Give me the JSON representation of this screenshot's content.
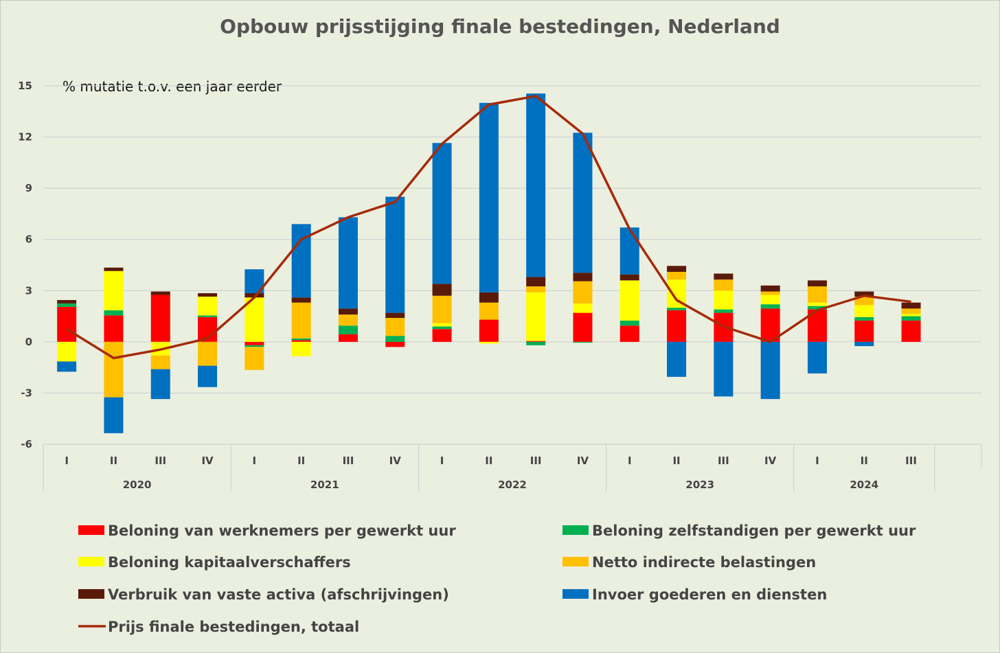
{
  "chart_data": {
    "type": "bar",
    "stacked": true,
    "title": "Opbouw prijsstijging finale bestedingen, Nederland",
    "unit_label": "% mutatie t.o.v. een jaar eerder",
    "ylim": [
      -6,
      15
    ],
    "yticks": [
      -6,
      -3,
      0,
      3,
      6,
      9,
      12,
      15
    ],
    "grid": true,
    "legend_position": "bottom",
    "categories": [
      "I",
      "II",
      "III",
      "IV",
      "I",
      "II",
      "III",
      "IV",
      "I",
      "II",
      "III",
      "IV",
      "I",
      "II",
      "III",
      "IV",
      "I",
      "II",
      "III"
    ],
    "years": [
      {
        "label": "2020",
        "count": 4
      },
      {
        "label": "2021",
        "count": 4
      },
      {
        "label": "2022",
        "count": 4
      },
      {
        "label": "2023",
        "count": 4
      },
      {
        "label": "2024",
        "count": 3
      }
    ],
    "series": [
      {
        "name": "Beloning van werknemers per gewerkt uur",
        "color": "#ff0000",
        "values": [
          2.05,
          1.55,
          2.75,
          1.45,
          -0.2,
          0.1,
          0.45,
          -0.3,
          0.75,
          1.3,
          0.05,
          1.7,
          0.95,
          1.85,
          1.7,
          1.95,
          1.9,
          1.25,
          1.25
        ]
      },
      {
        "name": "Beloning zelfstandigen per gewerkt uur",
        "color": "#00b050",
        "values": [
          0.2,
          0.3,
          0.0,
          0.1,
          -0.1,
          0.1,
          0.5,
          0.35,
          0.15,
          0.0,
          -0.2,
          -0.05,
          0.3,
          0.15,
          0.2,
          0.25,
          0.2,
          0.2,
          0.25
        ]
      },
      {
        "name": "Beloning kapitaalverschaffers",
        "color": "#ffff00",
        "values": [
          -1.15,
          2.3,
          -0.8,
          1.1,
          2.6,
          -0.85,
          0.0,
          0.0,
          0.2,
          -0.1,
          2.85,
          0.55,
          2.35,
          1.65,
          1.1,
          0.55,
          0.2,
          0.7,
          0.15
        ]
      },
      {
        "name": "Netto indirecte belastingen",
        "color": "#ffc000",
        "values": [
          0.0,
          -3.25,
          -0.8,
          -1.4,
          -1.35,
          2.1,
          0.65,
          1.05,
          1.6,
          1.0,
          0.35,
          1.3,
          0.0,
          0.45,
          0.65,
          0.2,
          0.95,
          0.5,
          0.3
        ]
      },
      {
        "name": "Verbruik van vaste activa (afschrijvingen)",
        "color": "#5a1a0a",
        "values": [
          0.2,
          0.2,
          0.2,
          0.2,
          0.25,
          0.3,
          0.35,
          0.3,
          0.7,
          0.6,
          0.55,
          0.5,
          0.35,
          0.35,
          0.35,
          0.35,
          0.35,
          0.3,
          0.35
        ]
      },
      {
        "name": "Invoer goederen en diensten",
        "color": "#0070c0",
        "values": [
          -0.6,
          -2.1,
          -1.75,
          -1.25,
          1.4,
          4.3,
          5.35,
          6.8,
          8.25,
          11.1,
          10.75,
          8.2,
          2.75,
          -2.05,
          -3.2,
          -3.35,
          -1.85,
          -0.25,
          0.0
        ]
      }
    ],
    "line": {
      "name": "Prijs finale bestedingen, totaal",
      "color": "#a52a0a",
      "values": [
        0.75,
        -0.95,
        -0.45,
        0.2,
        2.6,
        6.0,
        7.3,
        8.2,
        11.6,
        13.9,
        14.4,
        12.2,
        6.6,
        2.45,
        0.9,
        0.0,
        1.85,
        2.7,
        2.35
      ]
    },
    "legend": [
      {
        "label": "Beloning van werknemers per gewerkt uur",
        "color": "#ff0000",
        "kind": "box"
      },
      {
        "label": "Beloning zelfstandigen per gewerkt uur",
        "color": "#00b050",
        "kind": "box"
      },
      {
        "label": "Beloning kapitaalverschaffers",
        "color": "#ffff00",
        "kind": "box"
      },
      {
        "label": "Netto indirecte belastingen",
        "color": "#ffc000",
        "kind": "box"
      },
      {
        "label": "Verbruik van vaste activa (afschrijvingen)",
        "color": "#5a1a0a",
        "kind": "box"
      },
      {
        "label": "Invoer goederen en diensten",
        "color": "#0070c0",
        "kind": "box"
      },
      {
        "label": "Prijs finale bestedingen, totaal",
        "color": "#a52a0a",
        "kind": "line"
      }
    ]
  }
}
